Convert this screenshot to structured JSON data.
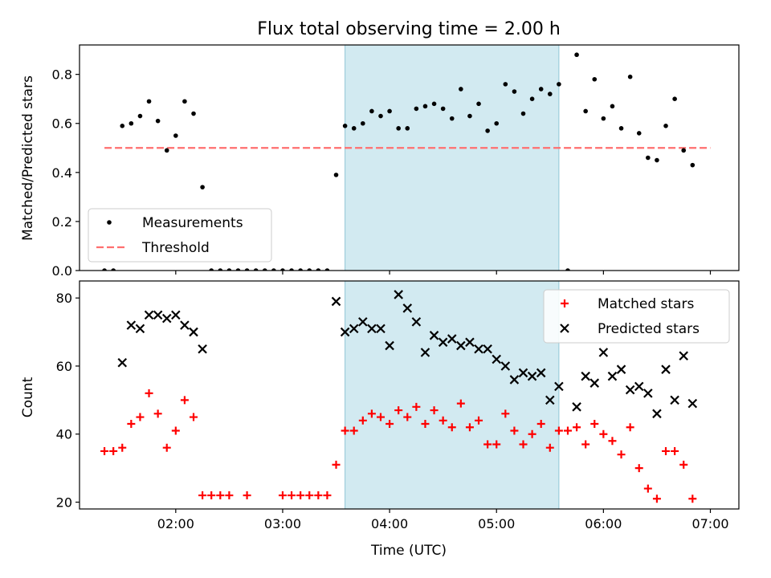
{
  "figure": {
    "title": "Flux total observing time = 2.00 h",
    "xlabel": "Time (UTC)",
    "x_ticks": [
      "02:00",
      "03:00",
      "04:00",
      "05:00",
      "06:00",
      "07:00"
    ],
    "highlight": {
      "start": "03:35",
      "end": "05:35",
      "color": "#add8e6"
    }
  },
  "chart_data": [
    {
      "type": "scatter",
      "panel": "top",
      "ylabel": "Matched/Predicted stars",
      "ylim": [
        0,
        0.92
      ],
      "y_ticks": [
        "0.0",
        "0.2",
        "0.4",
        "0.6",
        "0.8"
      ],
      "xlim_min": [
        66,
        436
      ],
      "legend": {
        "position": "lower-left",
        "items": [
          "Measurements",
          "Threshold"
        ]
      },
      "threshold": {
        "label": "Threshold",
        "value": 0.5,
        "x_start_min": 80,
        "x_end_min": 420,
        "color": "#ff6f6f"
      },
      "series": [
        {
          "name": "Measurements",
          "color": "#000000",
          "x_min": [
            80,
            85,
            90,
            95,
            100,
            105,
            110,
            115,
            120,
            125,
            130,
            135,
            140,
            145,
            150,
            155,
            160,
            165,
            170,
            175,
            180,
            185,
            190,
            195,
            200,
            205,
            210,
            215,
            220,
            225,
            230,
            235,
            240,
            245,
            250,
            255,
            260,
            265,
            270,
            275,
            280,
            285,
            290,
            295,
            300,
            305,
            310,
            315,
            320,
            325,
            330,
            335,
            340,
            345,
            350,
            355,
            360,
            365,
            370,
            375,
            380,
            385,
            390,
            395,
            400,
            405,
            410
          ],
          "y": [
            0,
            0,
            0.59,
            0.6,
            0.63,
            0.69,
            0.61,
            0.49,
            0.55,
            0.69,
            0.64,
            0.34,
            0,
            0,
            0,
            0,
            0,
            0,
            0,
            0,
            0,
            0,
            0,
            0,
            0,
            0,
            0.39,
            0.59,
            0.58,
            0.6,
            0.65,
            0.63,
            0.65,
            0.58,
            0.58,
            0.66,
            0.67,
            0.68,
            0.66,
            0.62,
            0.74,
            0.63,
            0.68,
            0.57,
            0.6,
            0.76,
            0.73,
            0.64,
            0.7,
            0.74,
            0.72,
            0.76,
            0,
            0.88,
            0.65,
            0.78,
            0.62,
            0.67,
            0.58,
            0.79,
            0.56,
            0.46,
            0.45,
            0.59,
            0.7,
            0.49,
            0.43
          ]
        }
      ]
    },
    {
      "type": "scatter",
      "panel": "bottom",
      "ylabel": "Count",
      "ylim": [
        18,
        85
      ],
      "y_ticks": [
        "20",
        "40",
        "60",
        "80"
      ],
      "xlim_min": [
        66,
        436
      ],
      "legend": {
        "position": "upper-right",
        "items": [
          "Matched stars",
          "Predicted stars"
        ]
      },
      "series": [
        {
          "name": "Matched stars",
          "marker": "plus",
          "color": "#ff0000",
          "x_min": [
            80,
            85,
            90,
            95,
            100,
            105,
            110,
            115,
            120,
            125,
            130,
            135,
            140,
            145,
            150,
            160,
            180,
            185,
            190,
            195,
            200,
            205,
            210,
            215,
            220,
            225,
            230,
            235,
            240,
            245,
            250,
            255,
            260,
            265,
            270,
            275,
            280,
            285,
            290,
            295,
            300,
            305,
            310,
            315,
            320,
            325,
            330,
            335,
            340,
            345,
            350,
            355,
            360,
            365,
            370,
            375,
            380,
            385,
            390,
            395,
            400,
            405,
            410
          ],
          "y": [
            35,
            35,
            36,
            43,
            45,
            52,
            46,
            36,
            41,
            50,
            45,
            22,
            22,
            22,
            22,
            22,
            22,
            22,
            22,
            22,
            22,
            22,
            31,
            41,
            41,
            44,
            46,
            45,
            43,
            47,
            45,
            48,
            43,
            47,
            44,
            42,
            49,
            42,
            44,
            37,
            37,
            46,
            41,
            37,
            40,
            43,
            36,
            41,
            41,
            42,
            37,
            43,
            40,
            38,
            34,
            42,
            30,
            24,
            21,
            35,
            35,
            31,
            21
          ]
        },
        {
          "name": "Predicted stars",
          "marker": "x",
          "color": "#000000",
          "x_min": [
            90,
            95,
            100,
            105,
            110,
            115,
            120,
            125,
            130,
            135,
            210,
            215,
            220,
            225,
            230,
            235,
            240,
            245,
            250,
            255,
            260,
            265,
            270,
            275,
            280,
            285,
            290,
            295,
            300,
            305,
            310,
            315,
            320,
            325,
            330,
            335,
            345,
            350,
            355,
            360,
            365,
            370,
            375,
            380,
            385,
            390,
            395,
            400,
            405,
            410
          ],
          "y": [
            61,
            72,
            71,
            75,
            75,
            74,
            75,
            72,
            70,
            65,
            79,
            70,
            71,
            73,
            71,
            71,
            66,
            81,
            77,
            73,
            64,
            69,
            67,
            68,
            66,
            67,
            65,
            65,
            62,
            60,
            56,
            58,
            57,
            58,
            50,
            54,
            48,
            57,
            55,
            64,
            57,
            59,
            53,
            54,
            52,
            46,
            59,
            50,
            63,
            49
          ]
        }
      ]
    }
  ]
}
